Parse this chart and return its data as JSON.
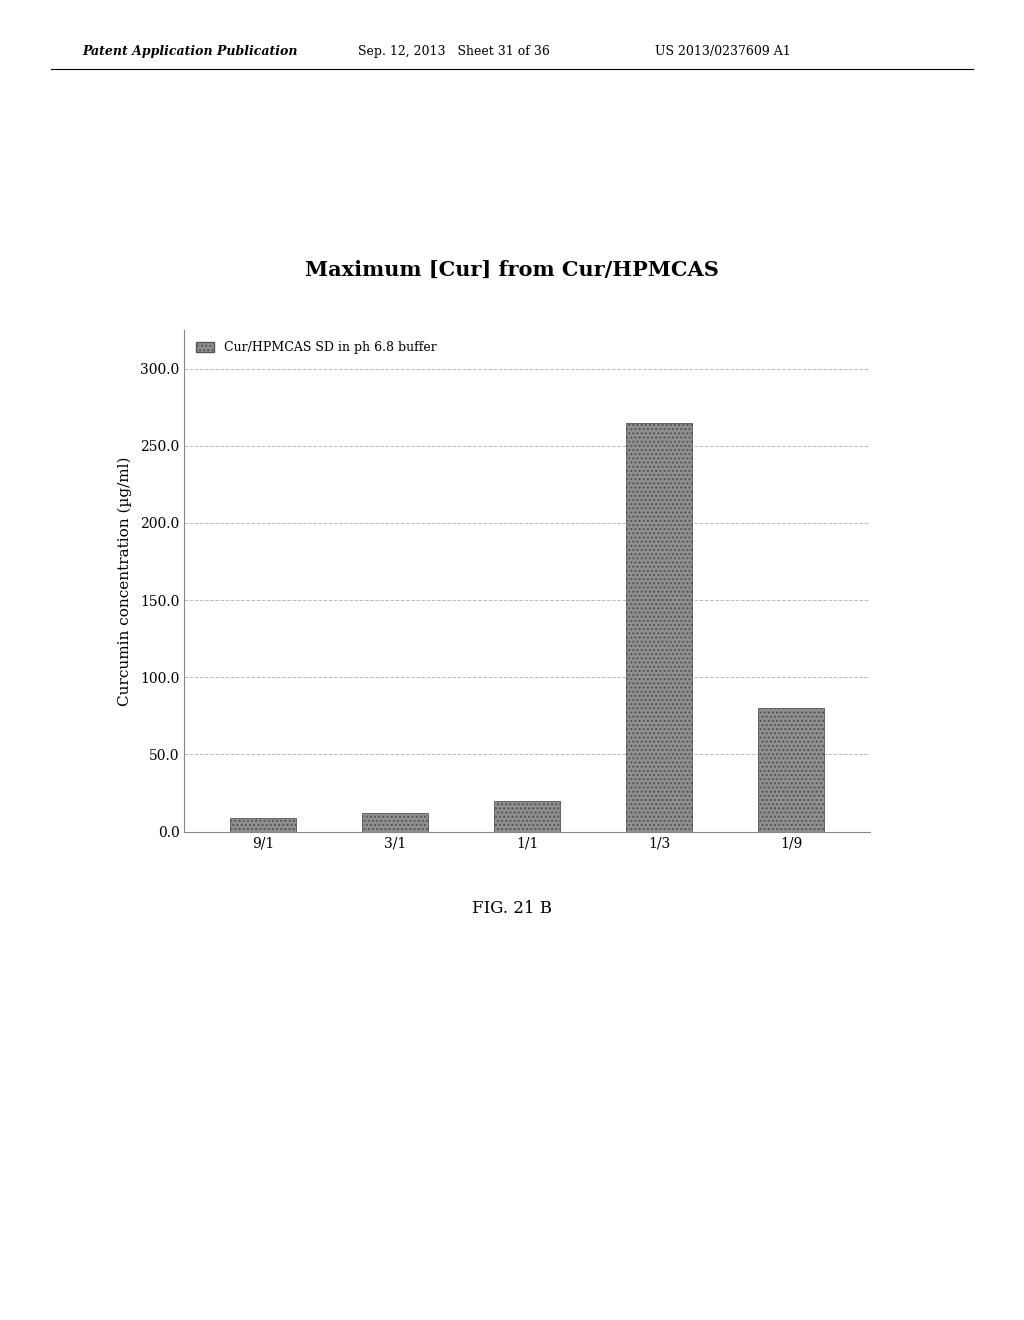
{
  "title": "Maximum [Cur] from Cur/HPMCAS",
  "categories": [
    "9/1",
    "3/1",
    "1/1",
    "1/3",
    "1/9"
  ],
  "values": [
    8.5,
    12.0,
    20.0,
    265.0,
    80.0
  ],
  "bar_color": "#909090",
  "bar_hatch": "....",
  "ylabel": "Curcumin concentration (µg/ml)",
  "ylim": [
    0,
    325
  ],
  "yticks": [
    0.0,
    50.0,
    100.0,
    150.0,
    200.0,
    250.0,
    300.0
  ],
  "legend_label": "Cur/HPMCAS SD in ph 6.8 buffer",
  "fig_caption": "FIG. 21 B",
  "background_color": "#ffffff",
  "grid_color": "#bbbbbb",
  "title_fontsize": 15,
  "axis_fontsize": 11,
  "tick_fontsize": 10,
  "patent_header_left": "Patent Application Publication",
  "patent_header_mid": "Sep. 12, 2013   Sheet 31 of 36",
  "patent_header_right": "US 2013/0237609 A1"
}
